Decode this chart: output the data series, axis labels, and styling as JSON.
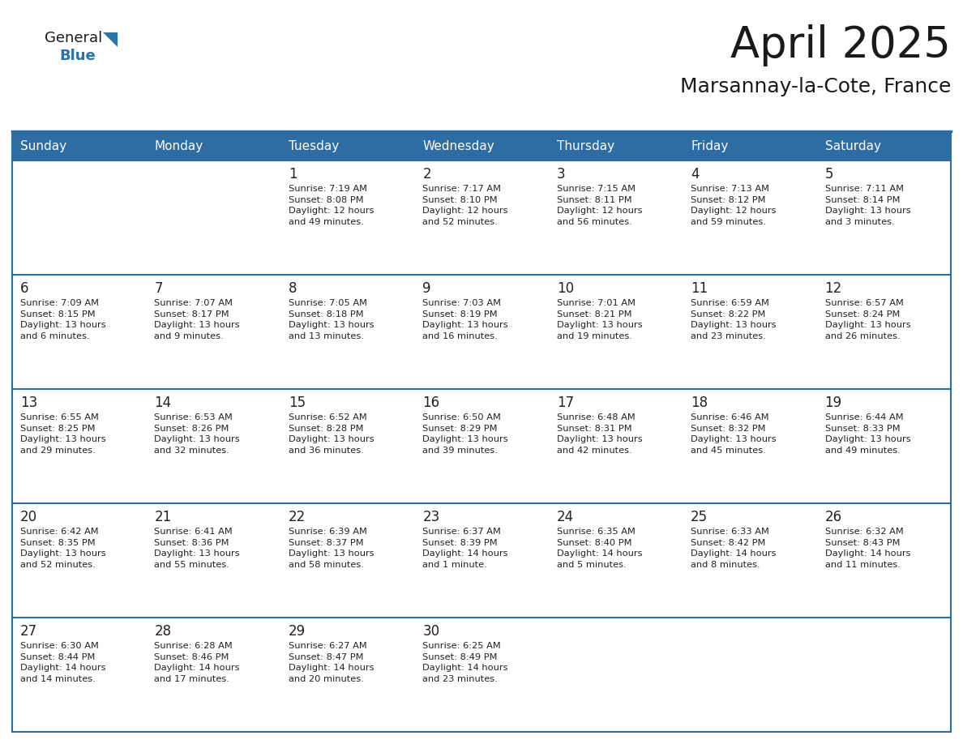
{
  "title": "April 2025",
  "subtitle": "Marsannay-la-Cote, France",
  "days_of_week": [
    "Sunday",
    "Monday",
    "Tuesday",
    "Wednesday",
    "Thursday",
    "Friday",
    "Saturday"
  ],
  "header_bg": "#2E6DA4",
  "header_text": "#FFFFFF",
  "cell_bg": "#FFFFFF",
  "cell_bg_alt": "#F0F4F8",
  "cell_border": "#2E6DA4",
  "row_border": "#2E6DA4",
  "text_color": "#222222",
  "title_color": "#1a1a1a",
  "logo_general_color": "#1a1a1a",
  "logo_blue_color": "#2874A6",
  "calendar": [
    [
      {
        "day": "",
        "info": ""
      },
      {
        "day": "",
        "info": ""
      },
      {
        "day": "1",
        "info": "Sunrise: 7:19 AM\nSunset: 8:08 PM\nDaylight: 12 hours\nand 49 minutes."
      },
      {
        "day": "2",
        "info": "Sunrise: 7:17 AM\nSunset: 8:10 PM\nDaylight: 12 hours\nand 52 minutes."
      },
      {
        "day": "3",
        "info": "Sunrise: 7:15 AM\nSunset: 8:11 PM\nDaylight: 12 hours\nand 56 minutes."
      },
      {
        "day": "4",
        "info": "Sunrise: 7:13 AM\nSunset: 8:12 PM\nDaylight: 12 hours\nand 59 minutes."
      },
      {
        "day": "5",
        "info": "Sunrise: 7:11 AM\nSunset: 8:14 PM\nDaylight: 13 hours\nand 3 minutes."
      }
    ],
    [
      {
        "day": "6",
        "info": "Sunrise: 7:09 AM\nSunset: 8:15 PM\nDaylight: 13 hours\nand 6 minutes."
      },
      {
        "day": "7",
        "info": "Sunrise: 7:07 AM\nSunset: 8:17 PM\nDaylight: 13 hours\nand 9 minutes."
      },
      {
        "day": "8",
        "info": "Sunrise: 7:05 AM\nSunset: 8:18 PM\nDaylight: 13 hours\nand 13 minutes."
      },
      {
        "day": "9",
        "info": "Sunrise: 7:03 AM\nSunset: 8:19 PM\nDaylight: 13 hours\nand 16 minutes."
      },
      {
        "day": "10",
        "info": "Sunrise: 7:01 AM\nSunset: 8:21 PM\nDaylight: 13 hours\nand 19 minutes."
      },
      {
        "day": "11",
        "info": "Sunrise: 6:59 AM\nSunset: 8:22 PM\nDaylight: 13 hours\nand 23 minutes."
      },
      {
        "day": "12",
        "info": "Sunrise: 6:57 AM\nSunset: 8:24 PM\nDaylight: 13 hours\nand 26 minutes."
      }
    ],
    [
      {
        "day": "13",
        "info": "Sunrise: 6:55 AM\nSunset: 8:25 PM\nDaylight: 13 hours\nand 29 minutes."
      },
      {
        "day": "14",
        "info": "Sunrise: 6:53 AM\nSunset: 8:26 PM\nDaylight: 13 hours\nand 32 minutes."
      },
      {
        "day": "15",
        "info": "Sunrise: 6:52 AM\nSunset: 8:28 PM\nDaylight: 13 hours\nand 36 minutes."
      },
      {
        "day": "16",
        "info": "Sunrise: 6:50 AM\nSunset: 8:29 PM\nDaylight: 13 hours\nand 39 minutes."
      },
      {
        "day": "17",
        "info": "Sunrise: 6:48 AM\nSunset: 8:31 PM\nDaylight: 13 hours\nand 42 minutes."
      },
      {
        "day": "18",
        "info": "Sunrise: 6:46 AM\nSunset: 8:32 PM\nDaylight: 13 hours\nand 45 minutes."
      },
      {
        "day": "19",
        "info": "Sunrise: 6:44 AM\nSunset: 8:33 PM\nDaylight: 13 hours\nand 49 minutes."
      }
    ],
    [
      {
        "day": "20",
        "info": "Sunrise: 6:42 AM\nSunset: 8:35 PM\nDaylight: 13 hours\nand 52 minutes."
      },
      {
        "day": "21",
        "info": "Sunrise: 6:41 AM\nSunset: 8:36 PM\nDaylight: 13 hours\nand 55 minutes."
      },
      {
        "day": "22",
        "info": "Sunrise: 6:39 AM\nSunset: 8:37 PM\nDaylight: 13 hours\nand 58 minutes."
      },
      {
        "day": "23",
        "info": "Sunrise: 6:37 AM\nSunset: 8:39 PM\nDaylight: 14 hours\nand 1 minute."
      },
      {
        "day": "24",
        "info": "Sunrise: 6:35 AM\nSunset: 8:40 PM\nDaylight: 14 hours\nand 5 minutes."
      },
      {
        "day": "25",
        "info": "Sunrise: 6:33 AM\nSunset: 8:42 PM\nDaylight: 14 hours\nand 8 minutes."
      },
      {
        "day": "26",
        "info": "Sunrise: 6:32 AM\nSunset: 8:43 PM\nDaylight: 14 hours\nand 11 minutes."
      }
    ],
    [
      {
        "day": "27",
        "info": "Sunrise: 6:30 AM\nSunset: 8:44 PM\nDaylight: 14 hours\nand 14 minutes."
      },
      {
        "day": "28",
        "info": "Sunrise: 6:28 AM\nSunset: 8:46 PM\nDaylight: 14 hours\nand 17 minutes."
      },
      {
        "day": "29",
        "info": "Sunrise: 6:27 AM\nSunset: 8:47 PM\nDaylight: 14 hours\nand 20 minutes."
      },
      {
        "day": "30",
        "info": "Sunrise: 6:25 AM\nSunset: 8:49 PM\nDaylight: 14 hours\nand 23 minutes."
      },
      {
        "day": "",
        "info": ""
      },
      {
        "day": "",
        "info": ""
      },
      {
        "day": "",
        "info": ""
      }
    ]
  ]
}
